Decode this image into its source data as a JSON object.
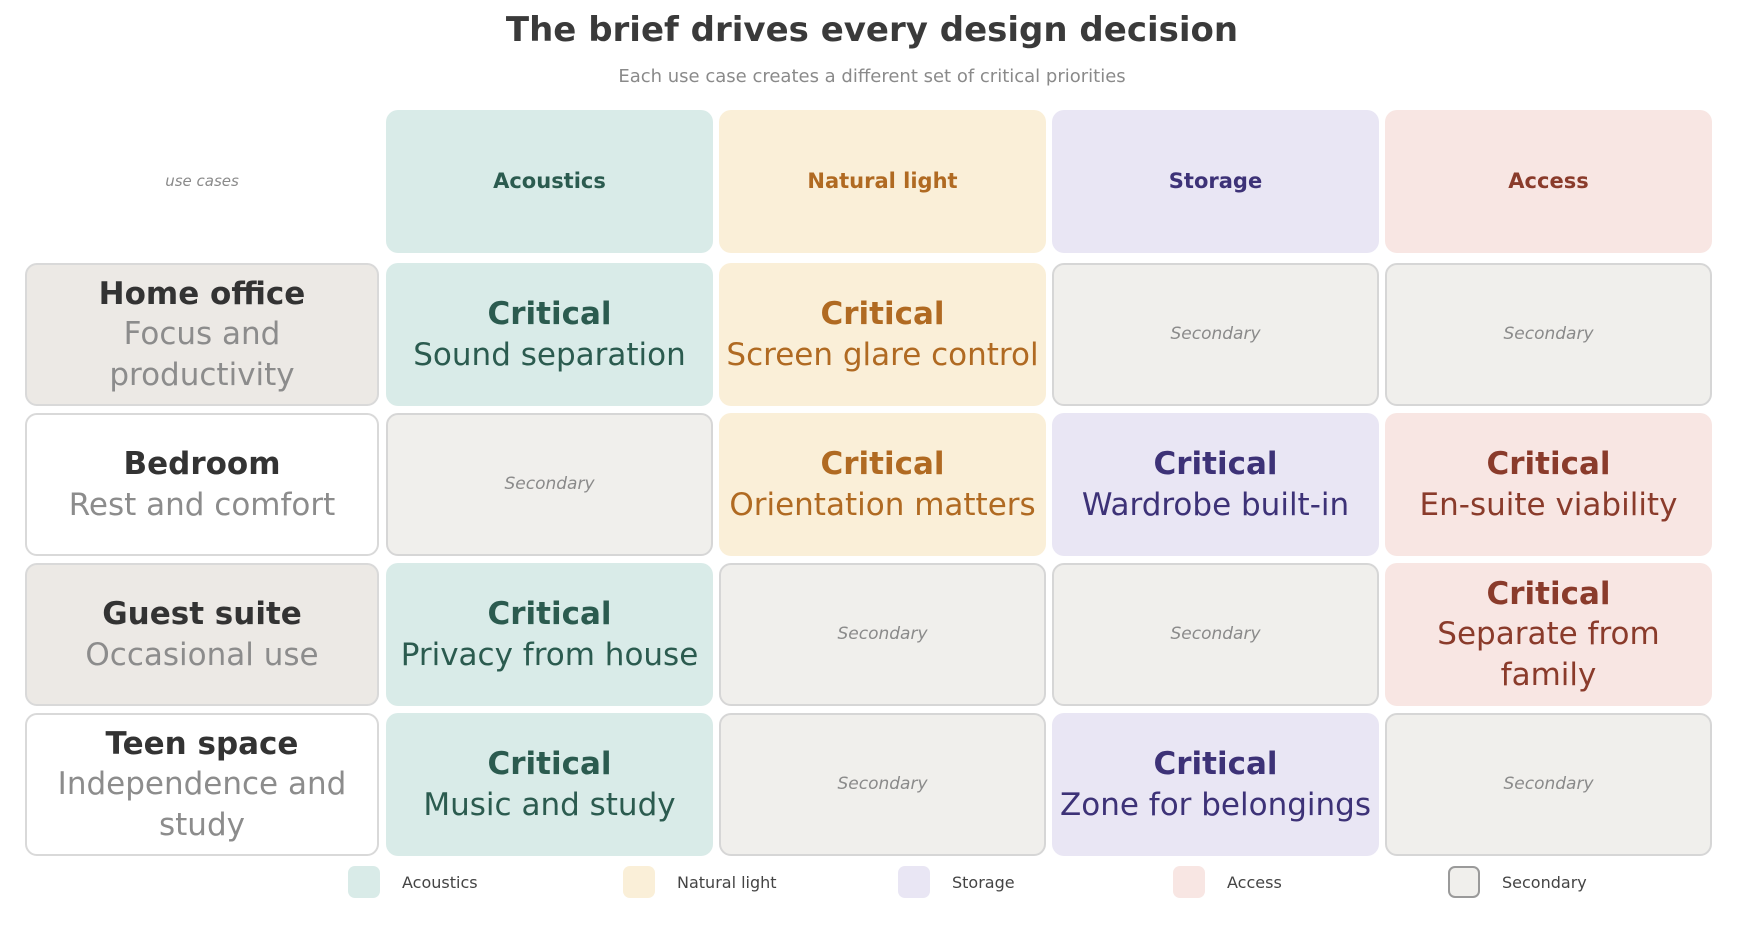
{
  "title": "The brief drives every design decision",
  "subtitle": "Each use case creates a different set of critical priorities",
  "corner_label": "use cases",
  "colors": {
    "acoustics": {
      "bg": "#d9ebe8",
      "fg": "#2b5b4f"
    },
    "light": {
      "bg": "#faefd8",
      "fg": "#b06a22"
    },
    "storage": {
      "bg": "#e9e6f4",
      "fg": "#3d3277"
    },
    "access": {
      "bg": "#f8e6e3",
      "fg": "#8a3b2b"
    },
    "secondary": {
      "bg": "#f0efec",
      "border": "#d6d6d6"
    },
    "row_tinted": "#ece9e5",
    "row_white": "#ffffff"
  },
  "columns": [
    {
      "key": "acoustics",
      "label": "Acoustics"
    },
    {
      "key": "light",
      "label": "Natural light"
    },
    {
      "key": "storage",
      "label": "Storage"
    },
    {
      "key": "access",
      "label": "Access"
    }
  ],
  "rows": [
    {
      "title": "Home office",
      "subtitle": "Focus and productivity",
      "tinted": true,
      "cells": [
        {
          "critical": true,
          "level": "Critical",
          "desc": "Sound separation"
        },
        {
          "critical": true,
          "level": "Critical",
          "desc": "Screen glare control"
        },
        {
          "critical": false,
          "level": "Secondary"
        },
        {
          "critical": false,
          "level": "Secondary"
        }
      ]
    },
    {
      "title": "Bedroom",
      "subtitle": "Rest and comfort",
      "tinted": false,
      "cells": [
        {
          "critical": false,
          "level": "Secondary"
        },
        {
          "critical": true,
          "level": "Critical",
          "desc": "Orientation matters"
        },
        {
          "critical": true,
          "level": "Critical",
          "desc": "Wardrobe built-in"
        },
        {
          "critical": true,
          "level": "Critical",
          "desc": "En-suite viability"
        }
      ]
    },
    {
      "title": "Guest suite",
      "subtitle": "Occasional use",
      "tinted": true,
      "cells": [
        {
          "critical": true,
          "level": "Critical",
          "desc": "Privacy from house"
        },
        {
          "critical": false,
          "level": "Secondary"
        },
        {
          "critical": false,
          "level": "Secondary"
        },
        {
          "critical": true,
          "level": "Critical",
          "desc": "Separate from family"
        }
      ]
    },
    {
      "title": "Teen space",
      "subtitle": "Independence and study",
      "tinted": false,
      "cells": [
        {
          "critical": true,
          "level": "Critical",
          "desc": "Music and study"
        },
        {
          "critical": false,
          "level": "Secondary"
        },
        {
          "critical": true,
          "level": "Critical",
          "desc": "Zone for belongings"
        },
        {
          "critical": false,
          "level": "Secondary"
        }
      ]
    }
  ],
  "legend": [
    {
      "key": "acoustics",
      "label": "Acoustics"
    },
    {
      "key": "light",
      "label": "Natural light"
    },
    {
      "key": "storage",
      "label": "Storage"
    },
    {
      "key": "access",
      "label": "Access"
    },
    {
      "key": "secondary",
      "label": "Secondary"
    }
  ]
}
